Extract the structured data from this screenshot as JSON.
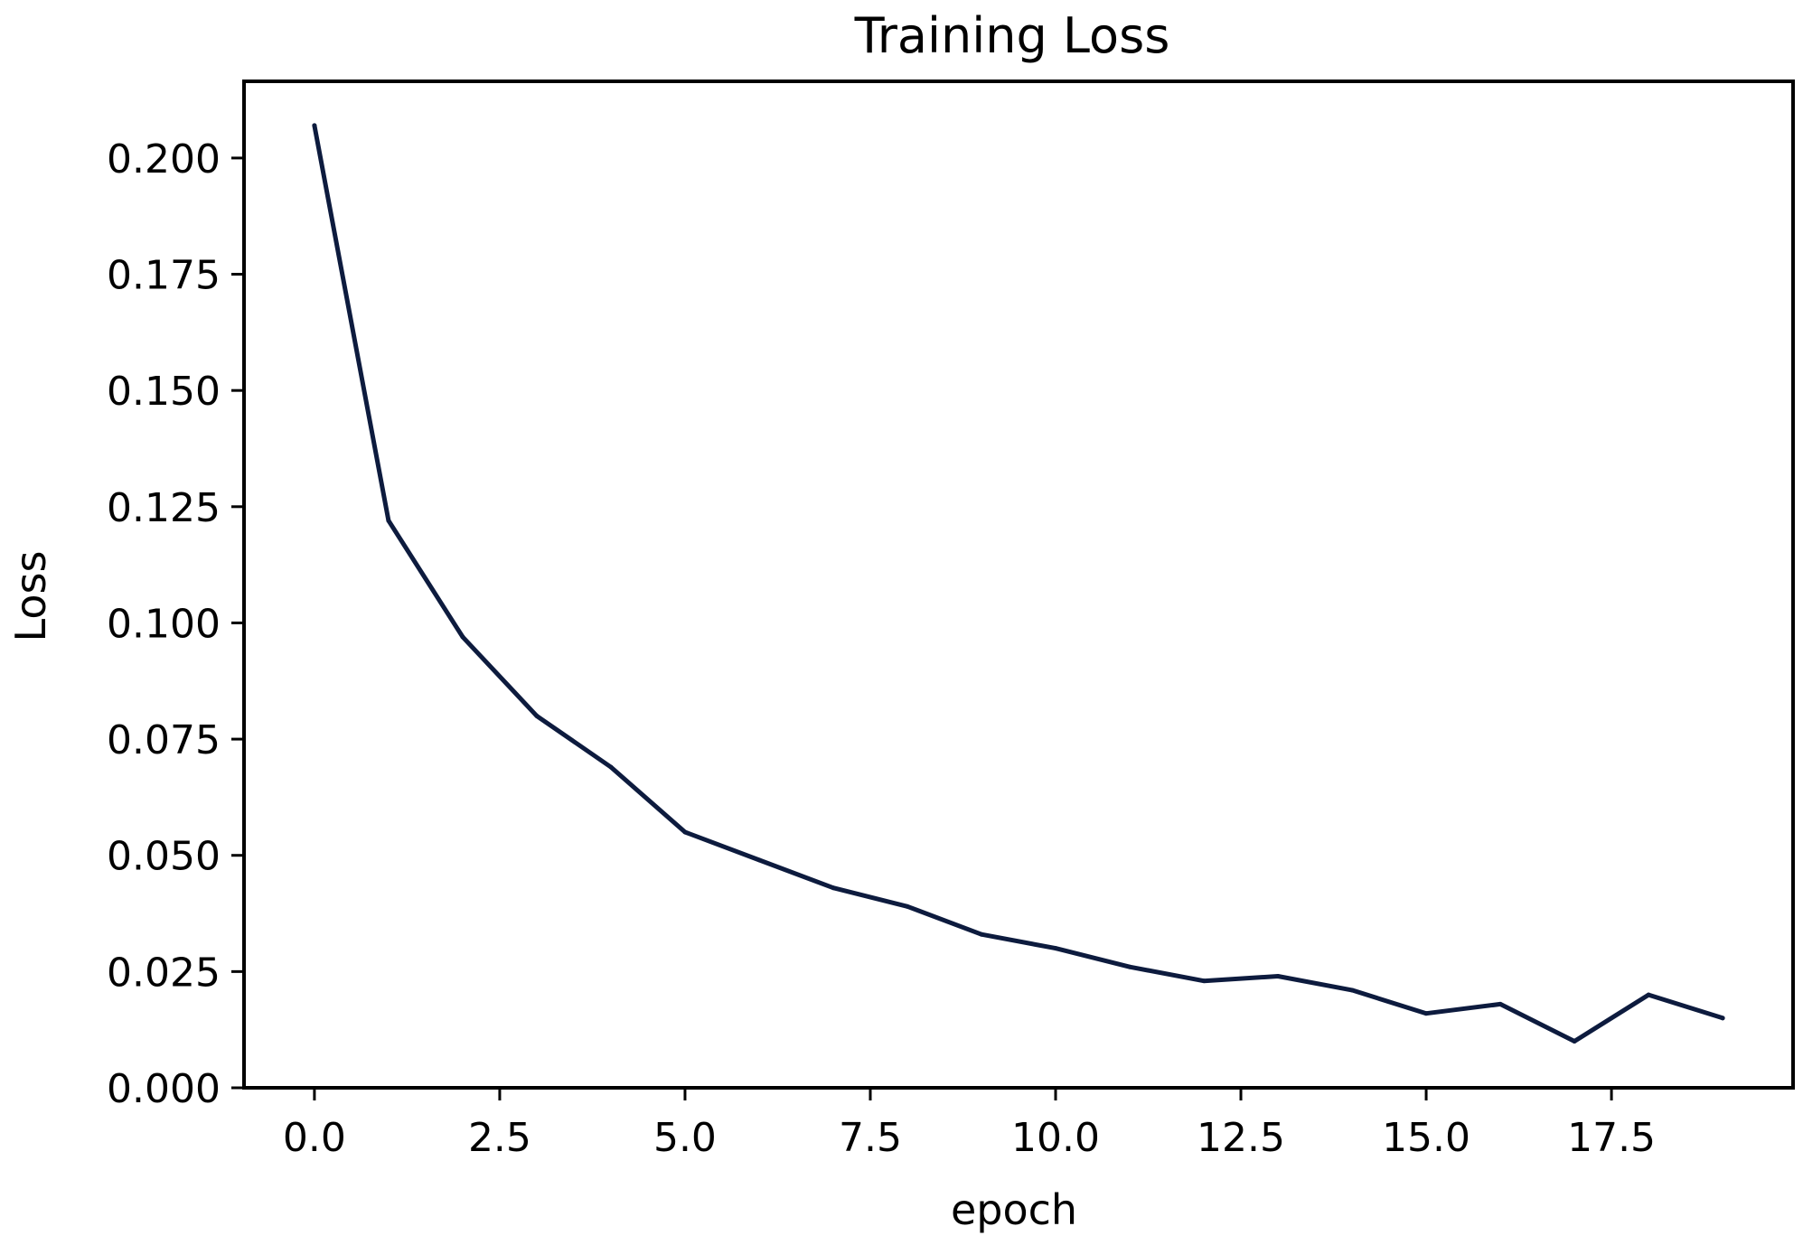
{
  "chart_data": {
    "type": "line",
    "title": "Training Loss",
    "xlabel": "epoch",
    "ylabel": "Loss",
    "xlim": [
      -0.95,
      19.95
    ],
    "ylim": [
      0,
      0.2165
    ],
    "xticks": [
      0.0,
      2.5,
      5.0,
      7.5,
      10.0,
      12.5,
      15.0,
      17.5
    ],
    "xtick_labels": [
      "0.0",
      "2.5",
      "5.0",
      "7.5",
      "10.0",
      "12.5",
      "15.0",
      "17.5"
    ],
    "yticks": [
      0.0,
      0.025,
      0.05,
      0.075,
      0.1,
      0.125,
      0.15,
      0.175,
      0.2
    ],
    "ytick_labels": [
      "0.000",
      "0.025",
      "0.050",
      "0.075",
      "0.100",
      "0.125",
      "0.150",
      "0.175",
      "0.200"
    ],
    "grid": false,
    "series": [
      {
        "x": [
          0,
          1,
          2,
          3,
          4,
          5,
          6,
          7,
          8,
          9,
          10,
          11,
          12,
          13,
          14,
          15,
          16,
          17,
          18,
          19
        ],
        "y": [
          0.207,
          0.122,
          0.097,
          0.08,
          0.069,
          0.055,
          0.049,
          0.043,
          0.039,
          0.033,
          0.03,
          0.026,
          0.023,
          0.024,
          0.021,
          0.016,
          0.018,
          0.01,
          0.02,
          0.015
        ],
        "color": "#0d1b3e"
      }
    ]
  }
}
